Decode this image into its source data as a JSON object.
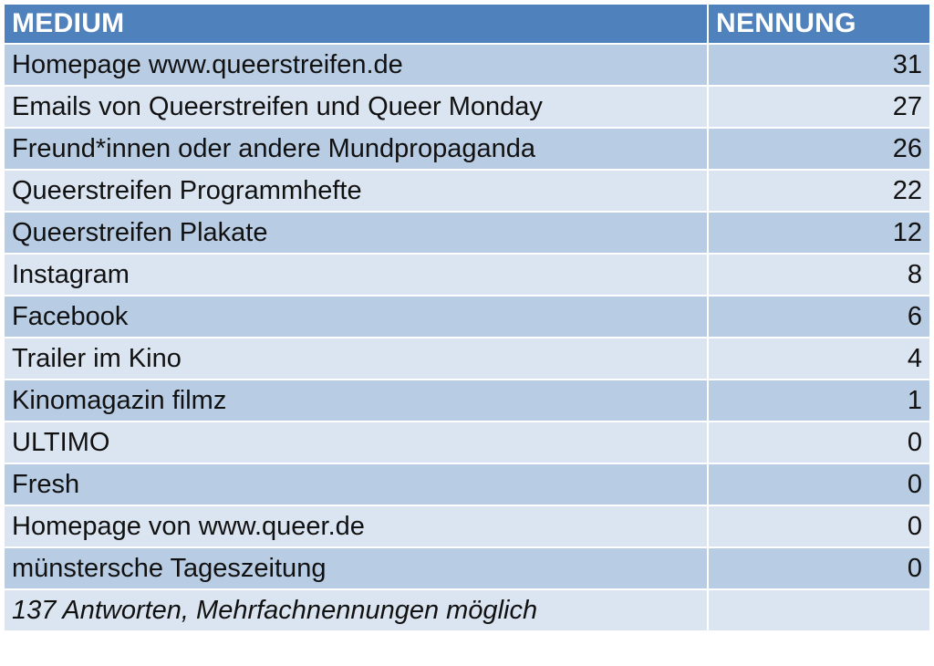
{
  "header": {
    "medium_label": "MEDIUM",
    "count_label": "NENNUNG"
  },
  "rows": [
    {
      "medium": "Homepage www.queerstreifen.de",
      "count": "31"
    },
    {
      "medium": "Emails von Queerstreifen und Queer Monday",
      "count": "27"
    },
    {
      "medium": "Freund*innen oder andere Mundpropaganda",
      "count": "26"
    },
    {
      "medium": "Queerstreifen Programmhefte",
      "count": "22"
    },
    {
      "medium": "Queerstreifen Plakate",
      "count": "12"
    },
    {
      "medium": "Instagram",
      "count": "8"
    },
    {
      "medium": "Facebook",
      "count": "6"
    },
    {
      "medium": "Trailer im Kino",
      "count": "4"
    },
    {
      "medium": "Kinomagazin filmz",
      "count": "1"
    },
    {
      "medium": "ULTIMO",
      "count": "0"
    },
    {
      "medium": "Fresh",
      "count": "0"
    },
    {
      "medium": "Homepage von www.queer.de",
      "count": "0"
    },
    {
      "medium": "münstersche Tageszeitung",
      "count": "0"
    }
  ],
  "footer": {
    "note": "137 Antworten, Mehrfachnennungen möglich",
    "count": ""
  }
}
